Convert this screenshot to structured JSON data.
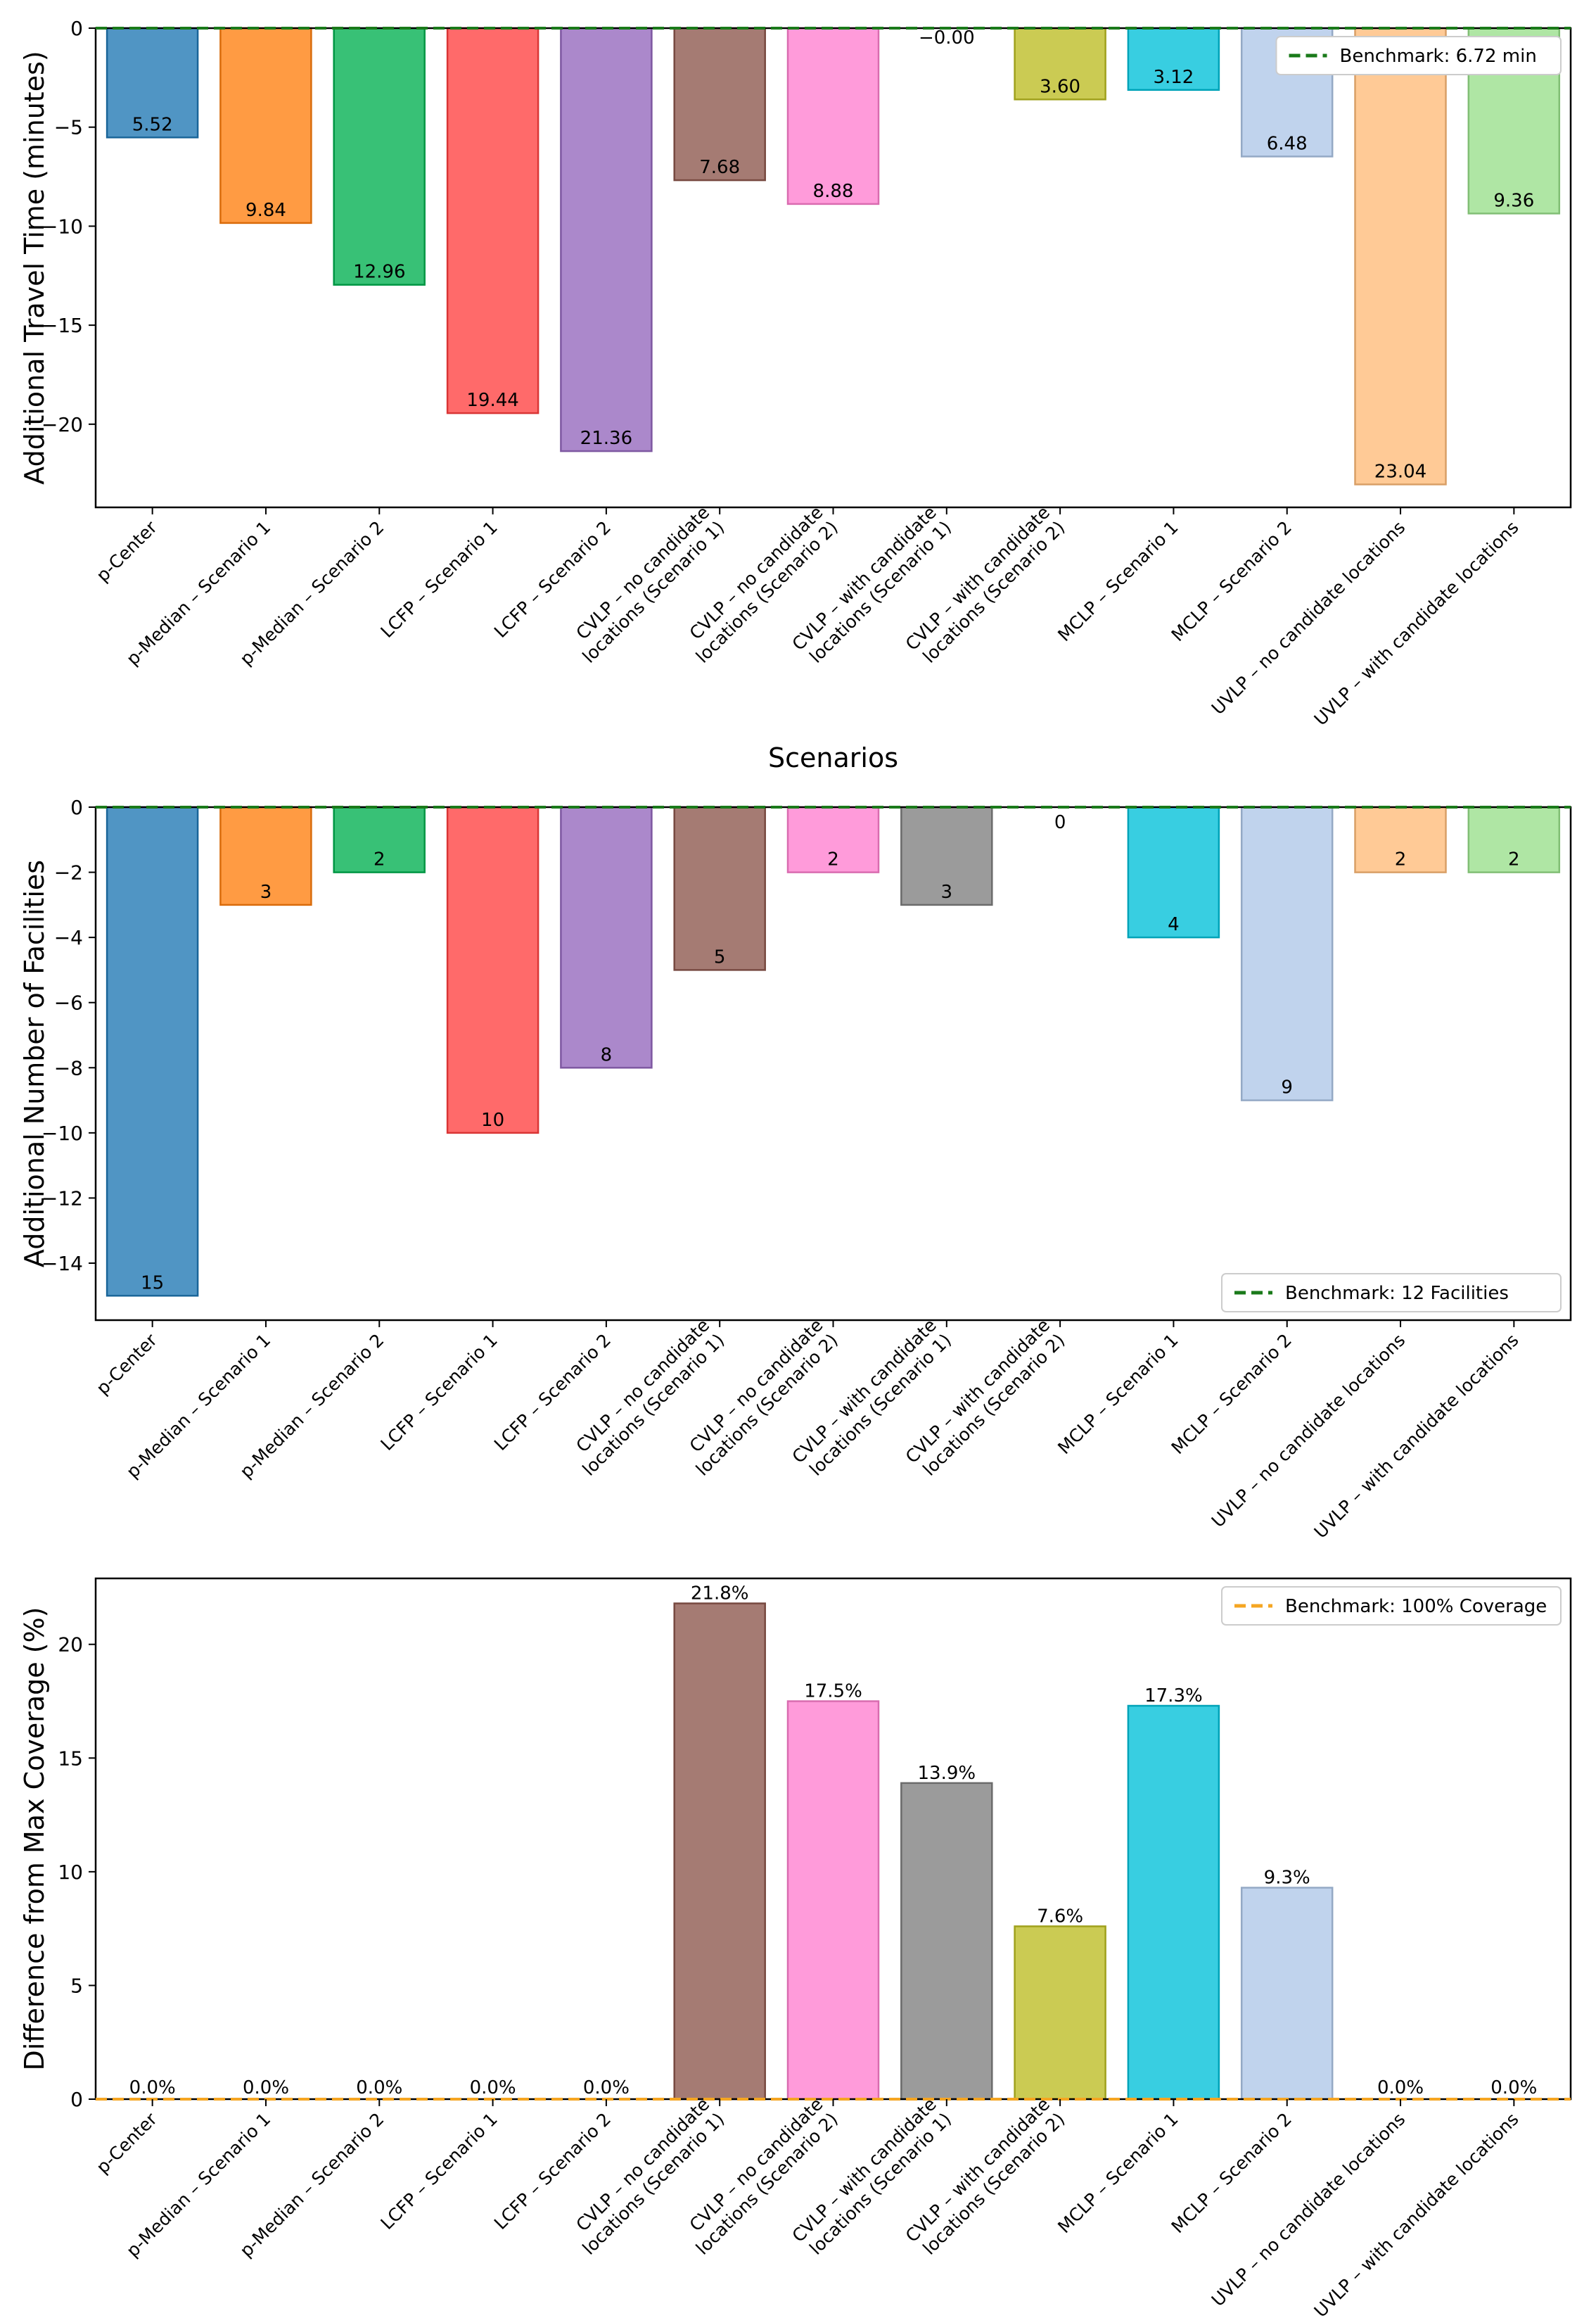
{
  "colors": {
    "bars": [
      "#1f77b4",
      "#ff7f0e",
      "#00b050",
      "#ff4040",
      "#9467bd",
      "#8c564b",
      "#ff7fcf",
      "#7f7f7f",
      "#bcbd22",
      "#00c0d8",
      "#aec7e8",
      "#ffbb78",
      "#98df8a"
    ],
    "benchmark_green": "#1a7a1a",
    "benchmark_orange": "#f5a623"
  },
  "chart_data": [
    {
      "type": "bar",
      "categories": [
        "p-Center",
        "p-Median – Scenario 1",
        "p-Median – Scenario 2",
        "LCFP – Scenario 1",
        "LCFP – Scenario 2",
        "CVLP – no candidate\nlocations (Scenario 1)",
        "CVLP – no candidate\nlocations (Scenario 2)",
        "CVLP – with candidate\nlocations (Scenario 1)",
        "CVLP – with candidate\nlocations (Scenario 2)",
        "MCLP – Scenario 1",
        "MCLP – Scenario 2",
        "UVLP – no candidate locations",
        "UVLP – with candidate locations"
      ],
      "values": [
        -5.52,
        -9.84,
        -12.96,
        -19.44,
        -21.36,
        -7.68,
        -8.88,
        0.0,
        -3.6,
        -3.12,
        -6.48,
        -23.04,
        -9.36
      ],
      "data_labels": [
        "5.52",
        "9.84",
        "12.96",
        "19.44",
        "21.36",
        "7.68",
        "8.88",
        "−0.00",
        "3.60",
        "3.12",
        "6.48",
        "23.04",
        "9.36"
      ],
      "ylabel": "Additional Travel Time (minutes)",
      "xlabel": "Scenarios",
      "ylim": [
        -24.2,
        0
      ],
      "yticks": [
        0,
        -5,
        -10,
        -15,
        -20
      ],
      "ytick_labels": [
        "0",
        "−5",
        "−10",
        "−15",
        "−20"
      ],
      "benchmark": {
        "value": 0,
        "label": "Benchmark: 6.72 min",
        "style": "dashed"
      },
      "legend_position": "top-right"
    },
    {
      "type": "bar",
      "categories": [
        "p-Center",
        "p-Median – Scenario 1",
        "p-Median – Scenario 2",
        "LCFP – Scenario 1",
        "LCFP – Scenario 2",
        "CVLP – no candidate\nlocations (Scenario 1)",
        "CVLP – no candidate\nlocations (Scenario 2)",
        "CVLP – with candidate\nlocations (Scenario 1)",
        "CVLP – with candidate\nlocations (Scenario 2)",
        "MCLP – Scenario 1",
        "MCLP – Scenario 2",
        "UVLP – no candidate locations",
        "UVLP – with candidate locations"
      ],
      "values": [
        -15,
        -3,
        -2,
        -10,
        -8,
        -5,
        -2,
        -3,
        0,
        -4,
        -9,
        -2,
        -2
      ],
      "data_labels": [
        "15",
        "3",
        "2",
        "10",
        "8",
        "5",
        "2",
        "3",
        "0",
        "4",
        "9",
        "2",
        "2"
      ],
      "ylabel": "Additional Number of Facilities",
      "xlabel": "",
      "ylim": [
        -15.75,
        0
      ],
      "yticks": [
        0,
        -2,
        -4,
        -6,
        -8,
        -10,
        -12,
        -14
      ],
      "ytick_labels": [
        "0",
        "−2",
        "−4",
        "−6",
        "−8",
        "−10",
        "−12",
        "−14"
      ],
      "benchmark": {
        "value": 0,
        "label": "Benchmark: 12 Facilities",
        "style": "dashed"
      },
      "legend_position": "bottom-right"
    },
    {
      "type": "bar",
      "categories": [
        "p-Center",
        "p-Median – Scenario 1",
        "p-Median – Scenario 2",
        "LCFP – Scenario 1",
        "LCFP – Scenario 2",
        "CVLP – no candidate\nlocations (Scenario 1)",
        "CVLP – no candidate\nlocations (Scenario 2)",
        "CVLP – with candidate\nlocations (Scenario 1)",
        "CVLP – with candidate\nlocations (Scenario 2)",
        "MCLP – Scenario 1",
        "MCLP – Scenario 2",
        "UVLP – no candidate locations",
        "UVLP – with candidate locations"
      ],
      "values": [
        0,
        0,
        0,
        0,
        0,
        21.8,
        17.5,
        13.9,
        7.6,
        17.3,
        9.3,
        0,
        0
      ],
      "data_labels": [
        "0.0%",
        "0.0%",
        "0.0%",
        "0.0%",
        "0.0%",
        "21.8%",
        "17.5%",
        "13.9%",
        "7.6%",
        "17.3%",
        "9.3%",
        "0.0%",
        "0.0%"
      ],
      "ylabel": "Difference from Max Coverage (%)",
      "xlabel": "",
      "ylim": [
        0,
        22.9
      ],
      "yticks": [
        0,
        5,
        10,
        15,
        20
      ],
      "ytick_labels": [
        "0",
        "5",
        "10",
        "15",
        "20"
      ],
      "benchmark": {
        "value": 0,
        "label": "Benchmark: 100% Coverage",
        "style": "dashed"
      },
      "legend_position": "top-right"
    }
  ]
}
